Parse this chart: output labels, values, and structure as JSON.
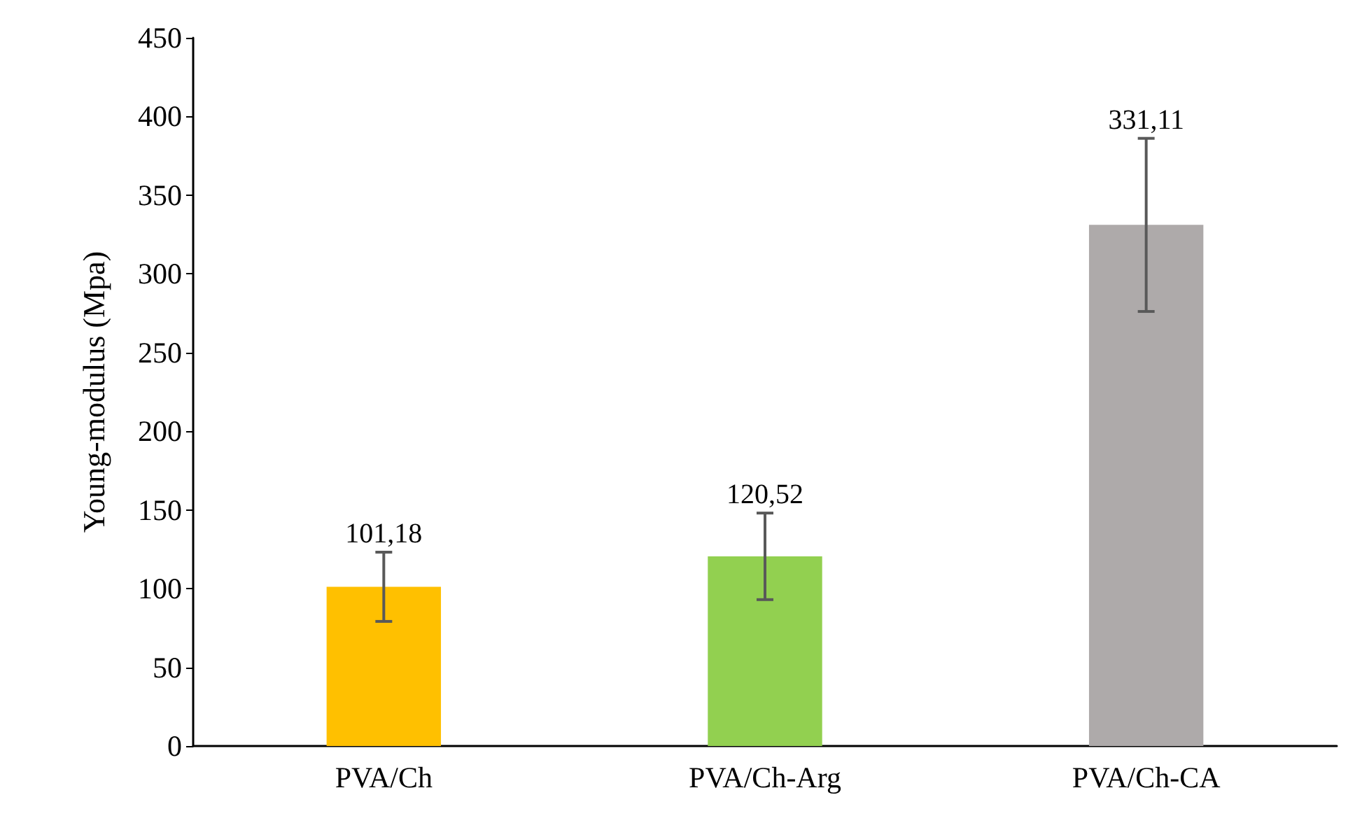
{
  "chart_data": {
    "type": "bar",
    "ylabel": "Young-modulus (Mpa)",
    "categories": [
      "PVA/Ch",
      "PVA/Ch-Arg",
      "PVA/Ch-CA"
    ],
    "values": [
      101.18,
      120.52,
      331.11
    ],
    "colors": [
      "#ffc000",
      "#92d050",
      "#aeaaaa"
    ],
    "errors": [
      22,
      27.5,
      55
    ],
    "value_labels": [
      "101,18",
      "120,52",
      "331,11"
    ],
    "ylim": [
      0,
      450
    ],
    "yticks": [
      0,
      50,
      100,
      150,
      200,
      250,
      300,
      350,
      400,
      450
    ],
    "grid": false
  }
}
